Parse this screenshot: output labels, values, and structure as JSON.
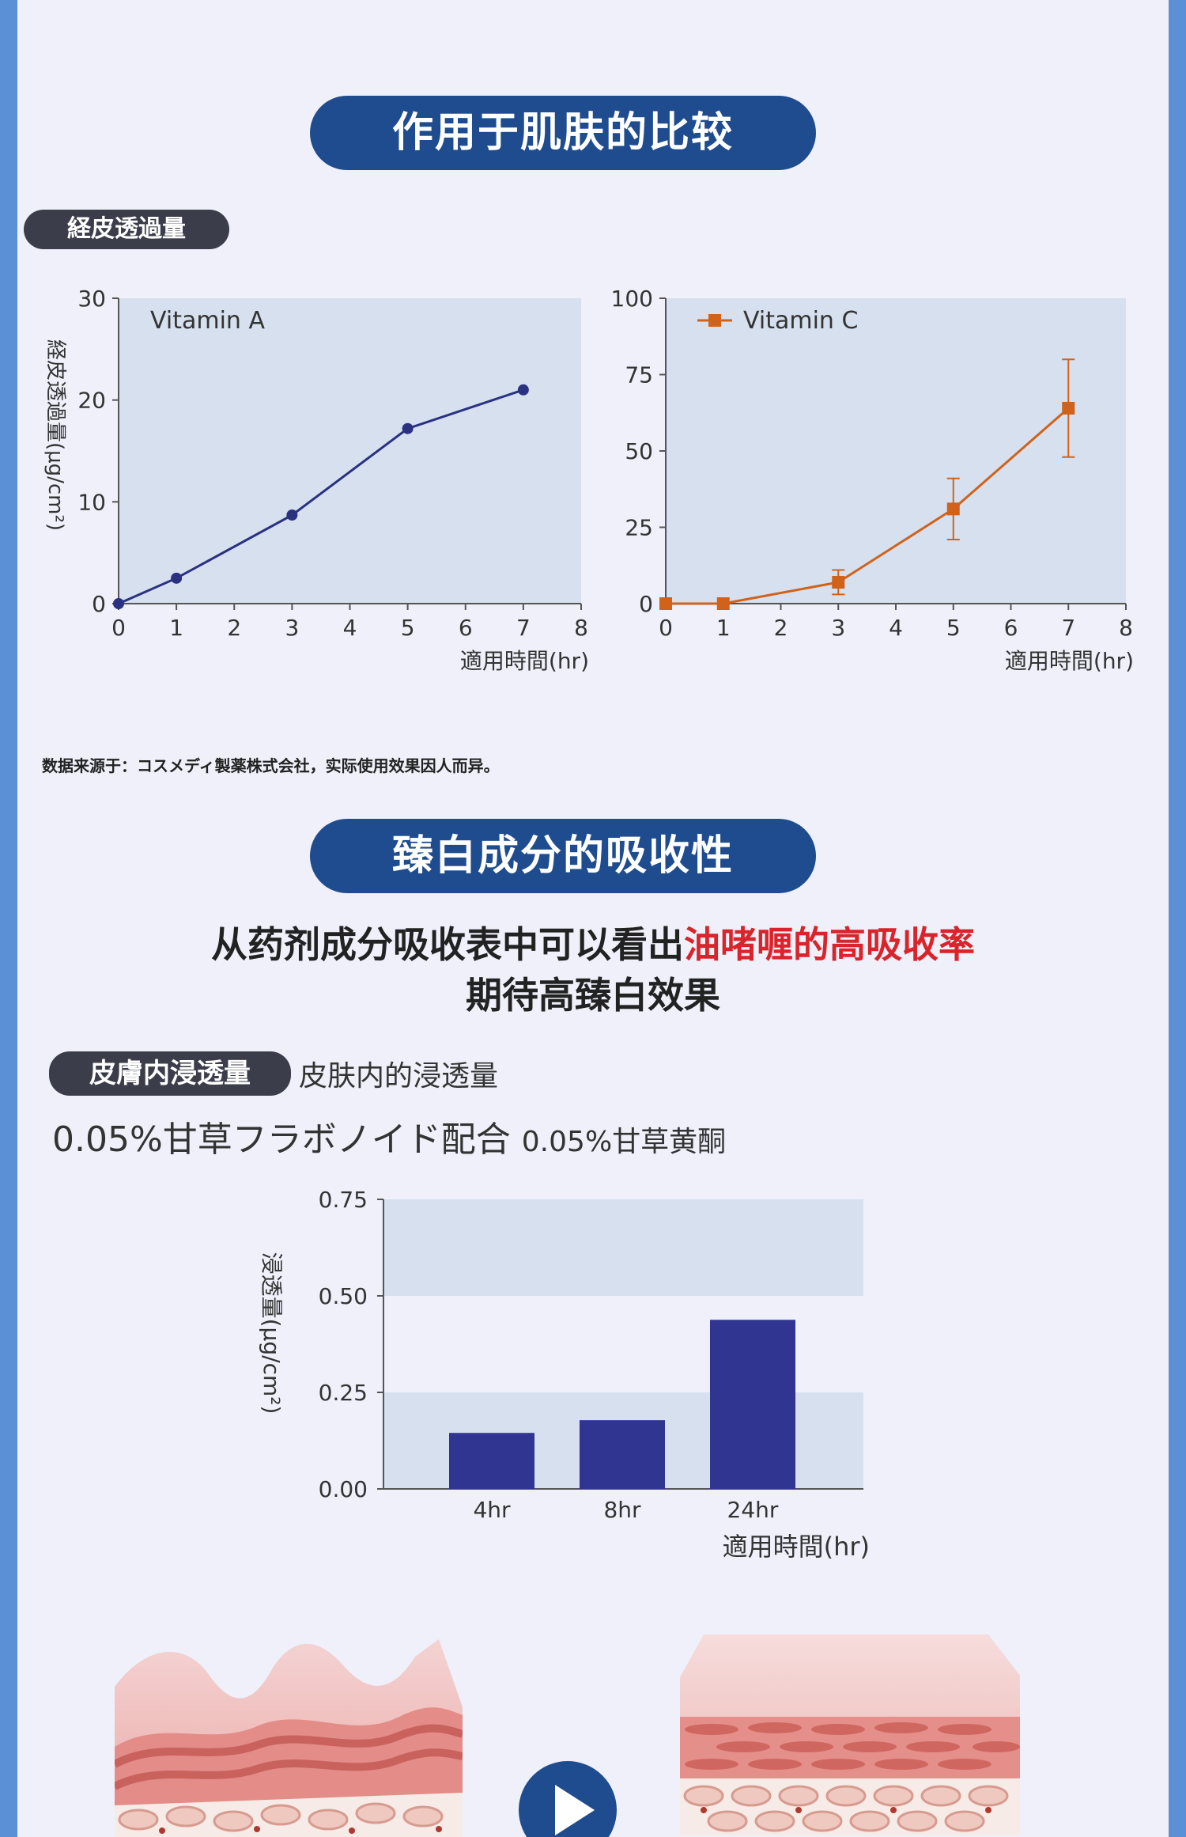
{
  "header1": "作用于肌肤的比较",
  "tag1": "経皮透過量",
  "chart_a_ylabel": "経皮透過量(μg/cm²)",
  "chart_a_xlabel": "適用時間(hr)",
  "chart_c_xlabel": "適用時間(hr)",
  "source_note": "数据来源于：コスメディ製薬株式会社，实际使用效果因人而异。",
  "header2": "臻白成分的吸收性",
  "desc_line1_a": "从药剂成分吸收表中可以看出",
  "desc_line1_b": "油啫喱的高吸收率",
  "desc_line2": "期待高臻白效果",
  "tag2": "皮膚内浸透量",
  "tag2_caption": "皮肤内的浸透量",
  "formula_jp": "0.05%甘草フラボノイド配合",
  "formula_cn": "0.05%甘草黄酮",
  "chart_bar_ylabel": "浸透量(μg/cm²)",
  "chart_bar_xlabel": "適用時間(hr)",
  "colors": {
    "navy": "#1e4c8e",
    "series_a": "#2a3180",
    "series_c": "#d0621a",
    "bar": "#2f3591",
    "band": "#d6e0ee",
    "accent_red": "#d8242a"
  },
  "icons": {
    "play": "play-icon"
  },
  "chart_data": [
    {
      "type": "line",
      "series": [
        {
          "name": "Vitamin A",
          "x": [
            0,
            1,
            3,
            5,
            7
          ],
          "values": [
            0,
            2.5,
            8.7,
            17.2,
            21
          ]
        }
      ],
      "x_ticks": [
        0,
        1,
        2,
        3,
        4,
        5,
        6,
        7,
        8
      ],
      "y_ticks": [
        0,
        10,
        20,
        30
      ],
      "xlim": [
        0,
        8
      ],
      "ylim": [
        0,
        30
      ],
      "xlabel": "適用時間(hr)",
      "ylabel": "経皮透過量(μg/cm²)",
      "grid": "horizontal bands"
    },
    {
      "type": "line",
      "series": [
        {
          "name": "Vitamin C",
          "x": [
            0,
            1,
            3,
            5,
            7
          ],
          "values": [
            0,
            0,
            7,
            31,
            64
          ],
          "error": [
            0,
            0,
            4,
            10,
            16
          ]
        }
      ],
      "x_ticks": [
        0,
        1,
        2,
        3,
        4,
        5,
        6,
        7,
        8
      ],
      "y_ticks": [
        0,
        25,
        50,
        75,
        100
      ],
      "xlim": [
        0,
        8
      ],
      "ylim": [
        0,
        100
      ],
      "xlabel": "適用時間(hr)",
      "legend": "top-left",
      "grid": "horizontal bands"
    },
    {
      "type": "bar",
      "categories": [
        "4hr",
        "8hr",
        "24hr"
      ],
      "values": [
        0.145,
        0.178,
        0.438
      ],
      "y_ticks": [
        "0.00",
        "0.25",
        "0.50",
        "0.75"
      ],
      "ylim": [
        0,
        0.75
      ],
      "xlabel": "適用時間(hr)",
      "ylabel": "浸透量(μg/cm²)",
      "grid": "horizontal bands"
    }
  ]
}
